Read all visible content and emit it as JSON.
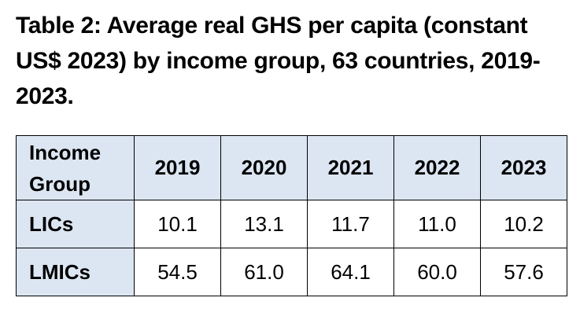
{
  "caption": "Table 2: Average real GHS per capita (constant US$ 2023) by income group, 63 countries, 2019-2023.",
  "table": {
    "group_header_line1": "Income",
    "group_header_line2": "Group",
    "years": [
      "2019",
      "2020",
      "2021",
      "2022",
      "2023"
    ],
    "rows": [
      {
        "group": "LICs",
        "values": [
          "10.1",
          "13.1",
          "11.7",
          "11.0",
          "10.2"
        ]
      },
      {
        "group": "LMICs",
        "values": [
          "54.5",
          "61.0",
          "64.1",
          "60.0",
          "57.6"
        ]
      }
    ],
    "header_background": "#dce6f2"
  }
}
